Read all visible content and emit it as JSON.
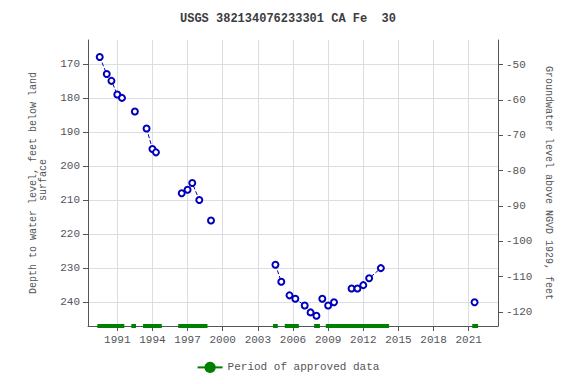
{
  "chart_data": {
    "type": "line",
    "title": "USGS 382134076233301 CA Fe  30",
    "ylabel": "Depth to water level, feet below land\n surface",
    "y2label": "Groundwater level above NGVD 1929, feet",
    "xlim": [
      1988.5,
      2023.5
    ],
    "xticks": [
      1991,
      1994,
      1997,
      2000,
      2003,
      2006,
      2009,
      2012,
      2015,
      2018,
      2021
    ],
    "ylim": [
      247,
      163
    ],
    "yticks": [
      170,
      180,
      190,
      200,
      210,
      220,
      230,
      240
    ],
    "y2lim": [
      -124,
      -43
    ],
    "y2ticks": [
      -50,
      -60,
      -70,
      -80,
      -90,
      -100,
      -110,
      -120
    ],
    "grid": true,
    "legend": "bottom",
    "series": [
      {
        "type": "line",
        "x": [
          1989.5,
          1990.1,
          1990.5,
          1991.0,
          1991.4
        ],
        "values": [
          168,
          173,
          175,
          179,
          180
        ],
        "color": "#0000bb",
        "line_style": "dashed",
        "marker": "hollow_circle"
      },
      {
        "type": "line",
        "x": [
          1992.5
        ],
        "values": [
          184
        ],
        "color": "#0000bb",
        "line_style": "dashed",
        "marker": "hollow_circle"
      },
      {
        "type": "line",
        "x": [
          1993.5,
          1994.0,
          1994.3
        ],
        "values": [
          189,
          195,
          196
        ],
        "color": "#0000bb",
        "line_style": "dashed",
        "marker": "hollow_circle"
      },
      {
        "type": "line",
        "x": [
          1996.5,
          1997.0,
          1997.4,
          1998.0
        ],
        "values": [
          208,
          207,
          205,
          210
        ],
        "color": "#0000bb",
        "line_style": "dashed",
        "marker": "hollow_circle"
      },
      {
        "type": "line",
        "x": [
          1999.0
        ],
        "values": [
          216
        ],
        "color": "#0000bb",
        "line_style": "dashed",
        "marker": "hollow_circle"
      },
      {
        "type": "line",
        "x": [
          2004.5,
          2005.0
        ],
        "values": [
          229,
          234
        ],
        "color": "#0000bb",
        "line_style": "dashed",
        "marker": "hollow_circle"
      },
      {
        "type": "line",
        "x": [
          2005.7,
          2006.2,
          2007.0,
          2007.5
        ],
        "values": [
          238,
          239,
          241,
          243
        ],
        "color": "#0000bb",
        "line_style": "dashed",
        "marker": "hollow_circle"
      },
      {
        "type": "line",
        "x": [
          2008.0
        ],
        "values": [
          244
        ],
        "color": "#0000bb",
        "line_style": "dashed",
        "marker": "hollow_circle"
      },
      {
        "type": "line",
        "x": [
          2008.5,
          2009.0
        ],
        "values": [
          239,
          241
        ],
        "color": "#0000bb",
        "line_style": "dashed",
        "marker": "hollow_circle"
      },
      {
        "type": "line",
        "x": [
          2009.5
        ],
        "values": [
          240
        ],
        "color": "#0000bb",
        "line_style": "dashed",
        "marker": "hollow_circle"
      },
      {
        "type": "line",
        "x": [
          2011.0,
          2011.5,
          2012.0,
          2012.5,
          2013.5
        ],
        "values": [
          236,
          236,
          235,
          233,
          230
        ],
        "color": "#0000bb",
        "line_style": "dashed",
        "marker": "hollow_circle"
      },
      {
        "type": "line",
        "x": [
          2021.5
        ],
        "values": [
          240
        ],
        "color": "#0000bb",
        "line_style": "dashed",
        "marker": "hollow_circle"
      },
      {
        "type": "period",
        "name": "Period of approved data",
        "color": "#008000",
        "line_style": "solid",
        "periods": [
          [
            1989.3,
            1991.6
          ],
          [
            1992.2,
            1992.6
          ],
          [
            1993.2,
            1994.8
          ],
          [
            1996.2,
            1998.7
          ],
          [
            2004.3,
            2004.7
          ],
          [
            2005.3,
            2006.5
          ],
          [
            2007.8,
            2008.3
          ],
          [
            2008.8,
            2014.2
          ],
          [
            2021.3,
            2021.8
          ]
        ]
      }
    ]
  }
}
